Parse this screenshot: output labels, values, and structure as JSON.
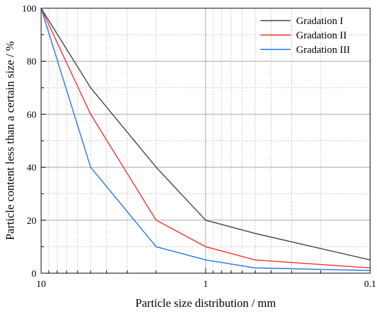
{
  "chart_data": {
    "type": "line",
    "x_scale": "log",
    "x_reversed": true,
    "xlabel": "Particle size distribution / mm",
    "ylabel": "Particle content less than a certain size / %",
    "xlim": [
      10,
      0.1
    ],
    "ylim": [
      0,
      100
    ],
    "x_ticks": [
      10,
      1,
      0.1
    ],
    "x_tick_labels": [
      "10",
      "1",
      "0.1"
    ],
    "y_ticks": [
      0,
      20,
      40,
      60,
      80,
      100
    ],
    "y_tick_labels": [
      "0",
      "20",
      "40",
      "60",
      "80",
      "100"
    ],
    "grid": true,
    "legend_position": "top-right",
    "x": [
      10,
      5,
      2,
      1,
      0.5,
      0.1
    ],
    "series": [
      {
        "name": "Gradation I",
        "color": "#404040",
        "values": [
          100,
          70,
          40,
          20,
          15,
          5
        ]
      },
      {
        "name": "Gradation II",
        "color": "#ff2a2a",
        "values": [
          100,
          60,
          20,
          10,
          5,
          2
        ]
      },
      {
        "name": "Gradation III",
        "color": "#1e73e8",
        "values": [
          100,
          40,
          10,
          5,
          2,
          1
        ]
      }
    ]
  }
}
